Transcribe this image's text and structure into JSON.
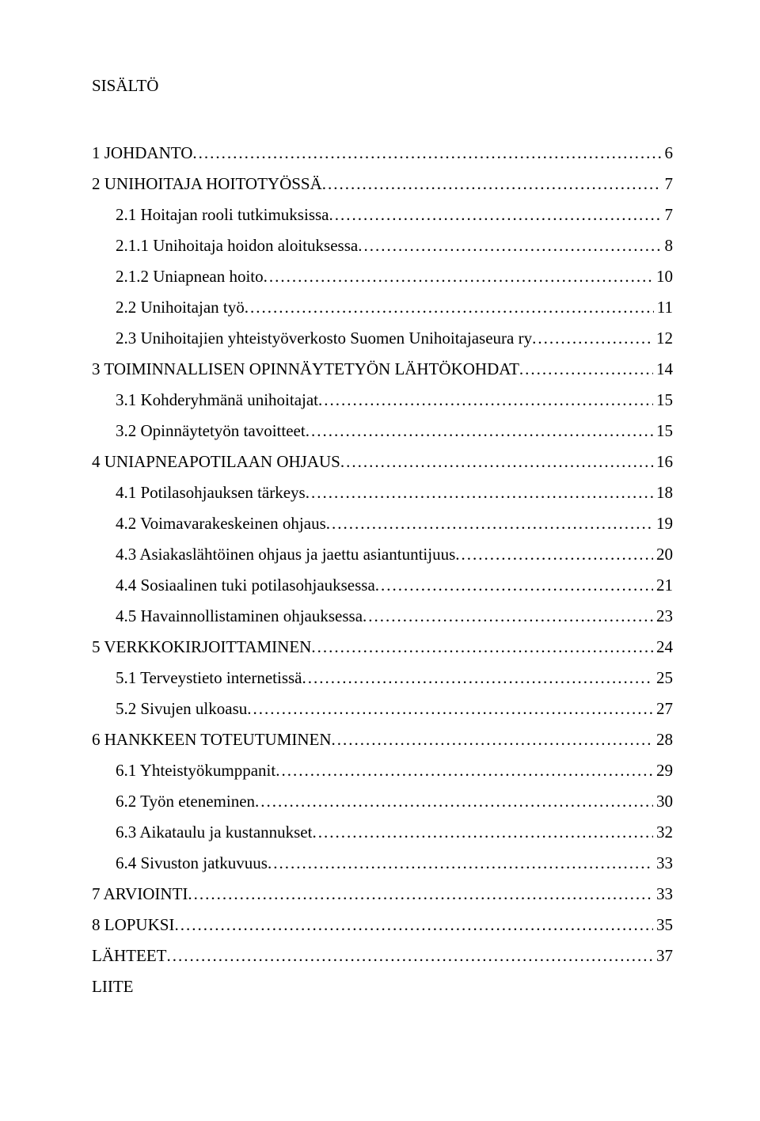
{
  "title": "SISÄLTÖ",
  "fontsize_pt": 16,
  "text_color": "#000000",
  "background_color": "#ffffff",
  "entries": [
    {
      "label": "1 JOHDANTO",
      "page": "6",
      "indent": 0
    },
    {
      "label": "2 UNIHOITAJA HOITOTYÖSSÄ",
      "page": "7",
      "indent": 0
    },
    {
      "label": "2.1 Hoitajan rooli tutkimuksissa",
      "page": "7",
      "indent": 1
    },
    {
      "label": "2.1.1 Unihoitaja hoidon aloituksessa",
      "page": "8",
      "indent": 1
    },
    {
      "label": "2.1.2 Uniapnean hoito",
      "page": "10",
      "indent": 1
    },
    {
      "label": "2.2 Unihoitajan työ",
      "page": "11",
      "indent": 1
    },
    {
      "label": "2.3 Unihoitajien yhteistyöverkosto Suomen Unihoitajaseura  ry",
      "page": "12",
      "indent": 1
    },
    {
      "label": "3 TOIMINNALLISEN OPINNÄYTETYÖN LÄHTÖKOHDAT",
      "page": "14",
      "indent": 0
    },
    {
      "label": "3.1 Kohderyhmänä unihoitajat",
      "page": "15",
      "indent": 1
    },
    {
      "label": "3.2 Opinnäytetyön tavoitteet",
      "page": "15",
      "indent": 1
    },
    {
      "label": "4 UNIAPNEAPOTILAAN OHJAUS",
      "page": "16",
      "indent": 0
    },
    {
      "label": "4.1 Potilasohjauksen tärkeys",
      "page": "18",
      "indent": 1
    },
    {
      "label": "4.2 Voimavarakeskeinen ohjaus",
      "page": "19",
      "indent": 1
    },
    {
      "label": "4.3 Asiakaslähtöinen ohjaus ja jaettu asiantuntijuus",
      "page": "20",
      "indent": 1
    },
    {
      "label": "4.4 Sosiaalinen tuki potilasohjauksessa",
      "page": "21",
      "indent": 1
    },
    {
      "label": "4.5 Havainnollistaminen ohjauksessa",
      "page": "23",
      "indent": 1
    },
    {
      "label": "5 VERKKOKIRJOITTAMINEN",
      "page": "24",
      "indent": 0
    },
    {
      "label": "5.1 Terveystieto internetissä",
      "page": "25",
      "indent": 1
    },
    {
      "label": "5.2 Sivujen ulkoasu",
      "page": "27",
      "indent": 1
    },
    {
      "label": "6 HANKKEEN TOTEUTUMINEN",
      "page": "28",
      "indent": 0
    },
    {
      "label": "6.1 Yhteistyökumppanit",
      "page": "29",
      "indent": 1
    },
    {
      "label": "6.2 Työn eteneminen",
      "page": "30",
      "indent": 1
    },
    {
      "label": "6.3 Aikataulu ja kustannukset",
      "page": "32",
      "indent": 1
    },
    {
      "label": "6.4 Sivuston jatkuvuus",
      "page": "33",
      "indent": 1
    },
    {
      "label": "7 ARVIOINTI",
      "page": "33",
      "indent": 0
    },
    {
      "label": "8 LOPUKSI",
      "page": "35",
      "indent": 0
    },
    {
      "label": "LÄHTEET",
      "page": "37",
      "indent": 0
    },
    {
      "label": "LIITE",
      "page": null,
      "indent": 0
    }
  ]
}
